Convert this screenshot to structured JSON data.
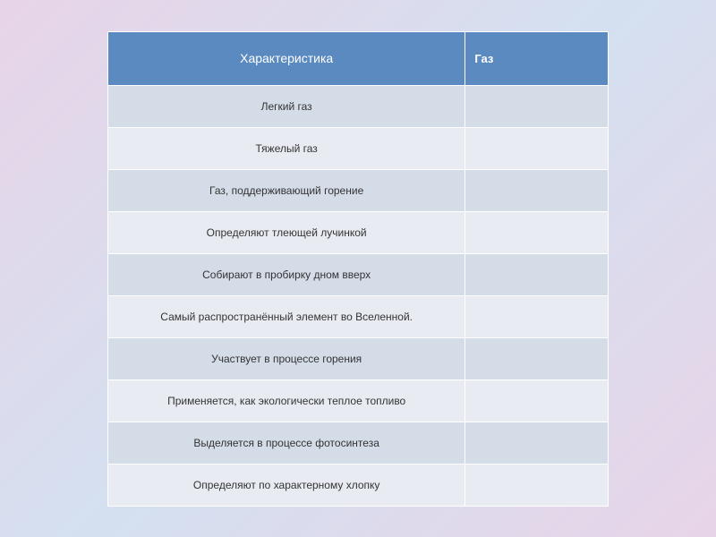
{
  "table": {
    "header": {
      "col1": "Характеристика",
      "col2": "Газ"
    },
    "header_bg": "#5a8ac0",
    "header_text_color": "#ffffff",
    "row_odd_bg": "#d4dce8",
    "row_even_bg": "#e8ecf2",
    "border_color": "#ffffff",
    "text_color": "#333333",
    "font_size_header": 14,
    "font_size_data": 12,
    "rows": [
      {
        "characteristic": "Легкий газ",
        "gas": ""
      },
      {
        "characteristic": "Тяжелый газ",
        "gas": ""
      },
      {
        "characteristic": "Газ, поддерживающий горение",
        "gas": ""
      },
      {
        "characteristic": "Определяют тлеющей лучинкой",
        "gas": ""
      },
      {
        "characteristic": "Собирают в пробирку дном вверх",
        "gas": ""
      },
      {
        "characteristic": "Самый распространённый элемент во Вселенной.",
        "gas": ""
      },
      {
        "characteristic": "Участвует в процессе горения",
        "gas": ""
      },
      {
        "characteristic": "Применяется, как экологически теплое топливо",
        "gas": ""
      },
      {
        "characteristic": "Выделяется в процессе фотосинтеза",
        "gas": ""
      },
      {
        "characteristic": "Определяют по характерному хлопку",
        "gas": ""
      }
    ]
  },
  "background_gradient": {
    "colors": [
      "#e8d4e8",
      "#d4e0f0",
      "#e8d4e8"
    ]
  }
}
